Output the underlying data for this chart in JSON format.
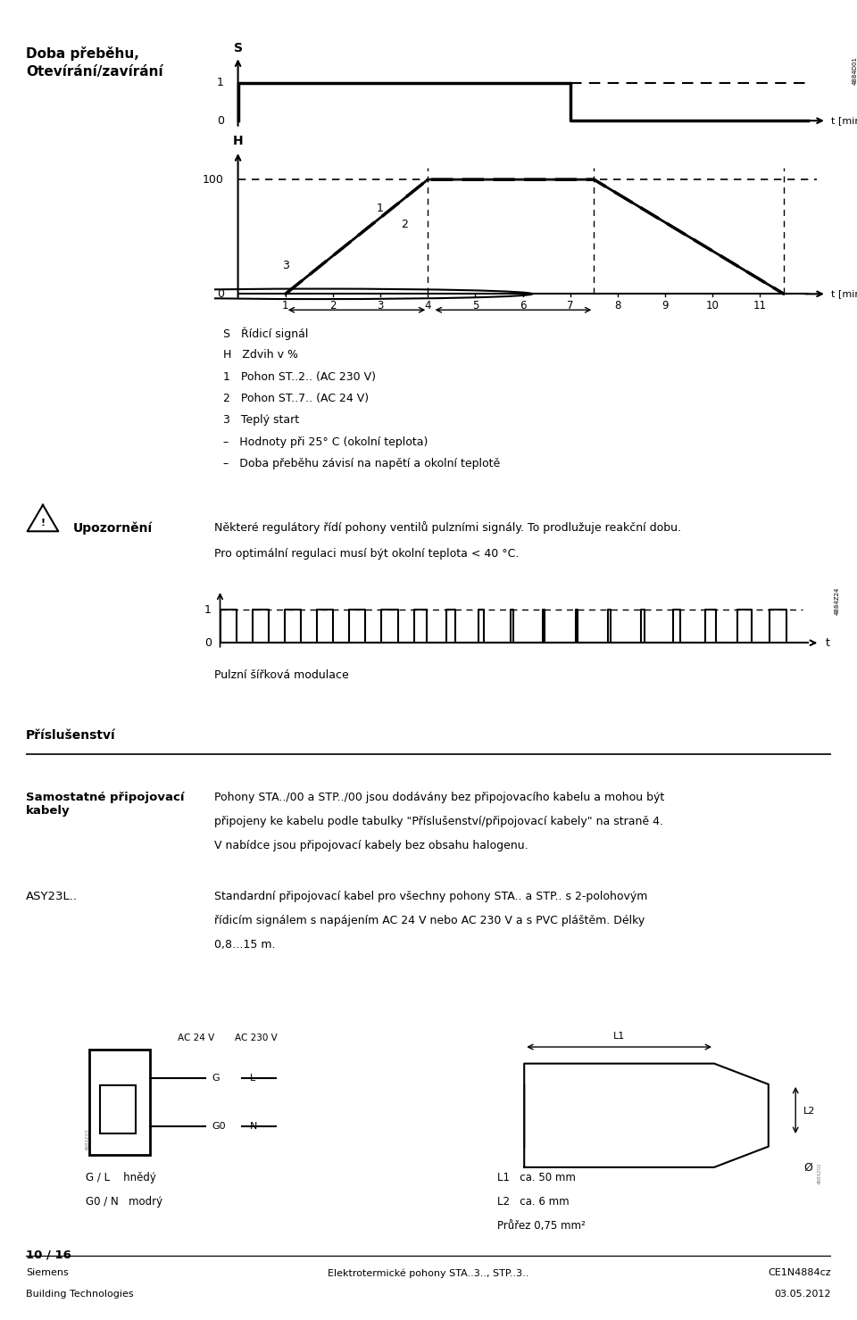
{
  "title_main": "Doba přeběhu,\nOtevírání/zavírání",
  "fig_width": 9.6,
  "fig_height": 14.79,
  "bg_color": "#ffffff",
  "text_color": "#000000",
  "section_accessories": "Příslušenství",
  "label_samostatne": "Samostatné připojovací\nkabely",
  "text_samostatne_1": "Pohony STA../00 a STP../00 jsou dodávány bez připojovacího kabelu a mohou být",
  "text_samostatne_2": "připojeny ke kabelu podle tabulky \"Příslušenství/připojovací kabely\" na straně 4.",
  "text_samostatne_3": "V nabídce jsou připojovací kabely bez obsahu halogenu.",
  "label_asy": "ASY23L..",
  "text_asy_1": "Standardní připojovací kabel pro všechny pohony STA.. a STP.. s 2-polohovým",
  "text_asy_2": "řídicím signálem s napájením AC 24 V nebo AC 230 V a s PVC pláštěm. Délky",
  "text_asy_3": "0,8…15 m.",
  "warning_title": "Upozornění",
  "warning_text1": "Některé regulátory řídí pohony ventilů pulzními signály. To prodlužuje reakční dobu.",
  "warning_text2": "Pro optimální regulaci musí být okolní teplota < 40 °C.",
  "pwm_label": "Pulzní šířková modulace",
  "footer_left1": "Siemens",
  "footer_left2": "Building Technologies",
  "footer_center": "Elektrotermické pohony STA..3.., STP..3..",
  "footer_right1": "CE1N4884cz",
  "footer_right2": "03.05.2012",
  "footer_page": "10 / 16",
  "legend_S": "S   Řídicí signál",
  "legend_H": "H   Zdvih v %",
  "legend_1": "1   Pohon ST..2.. (AC 230 V)",
  "legend_2": "2   Pohon ST..7.. (AC 24 V)",
  "legend_3": "3   Teplý start",
  "legend_dash1": "–   Hodnoty při 25° C (okolní teplota)",
  "legend_dash2": "–   Doba přeběhu závisí na napětí a okolní teplotě",
  "diag_ac24": "AC 24 V",
  "diag_ac230": "AC 230 V",
  "diag_G": "G",
  "diag_L": "L",
  "diag_G0": "G0",
  "diag_N": "N",
  "diag_GL_color": "G / L    hnědý",
  "diag_G0N_color": "G0 / N   modrý",
  "diag_L1": "L1   ca. 50 mm",
  "diag_L2": "L2   ca. 6 mm",
  "diag_prez": "Průřez 0,75 mm²",
  "img_num_s": "4884D01",
  "img_num_pwm": "4884Z24",
  "img_num_conn": "4884Z03",
  "img_num_cable": "4884Z02"
}
